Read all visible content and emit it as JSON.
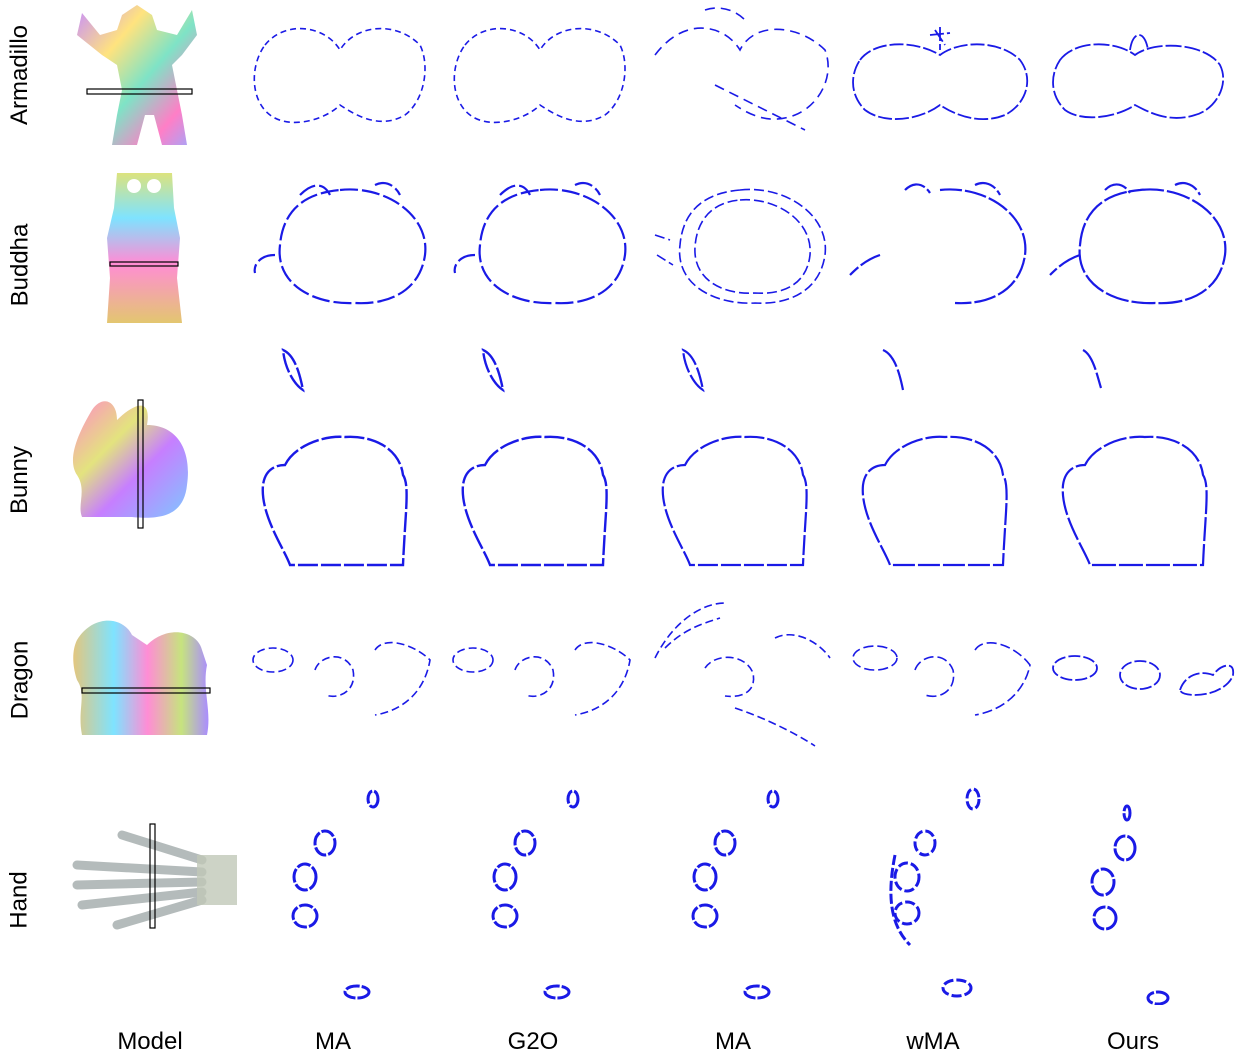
{
  "row_labels": [
    "Armadillo",
    "Buddha",
    "Bunny",
    "Dragon",
    "Hand"
  ],
  "column_labels": [
    "Model",
    "MA",
    "G2O",
    "MA",
    "wMA",
    "Ours"
  ],
  "colors": {
    "slice_points": "#1a1ae6",
    "cut_plane": "#000000",
    "background": "#ffffff"
  }
}
